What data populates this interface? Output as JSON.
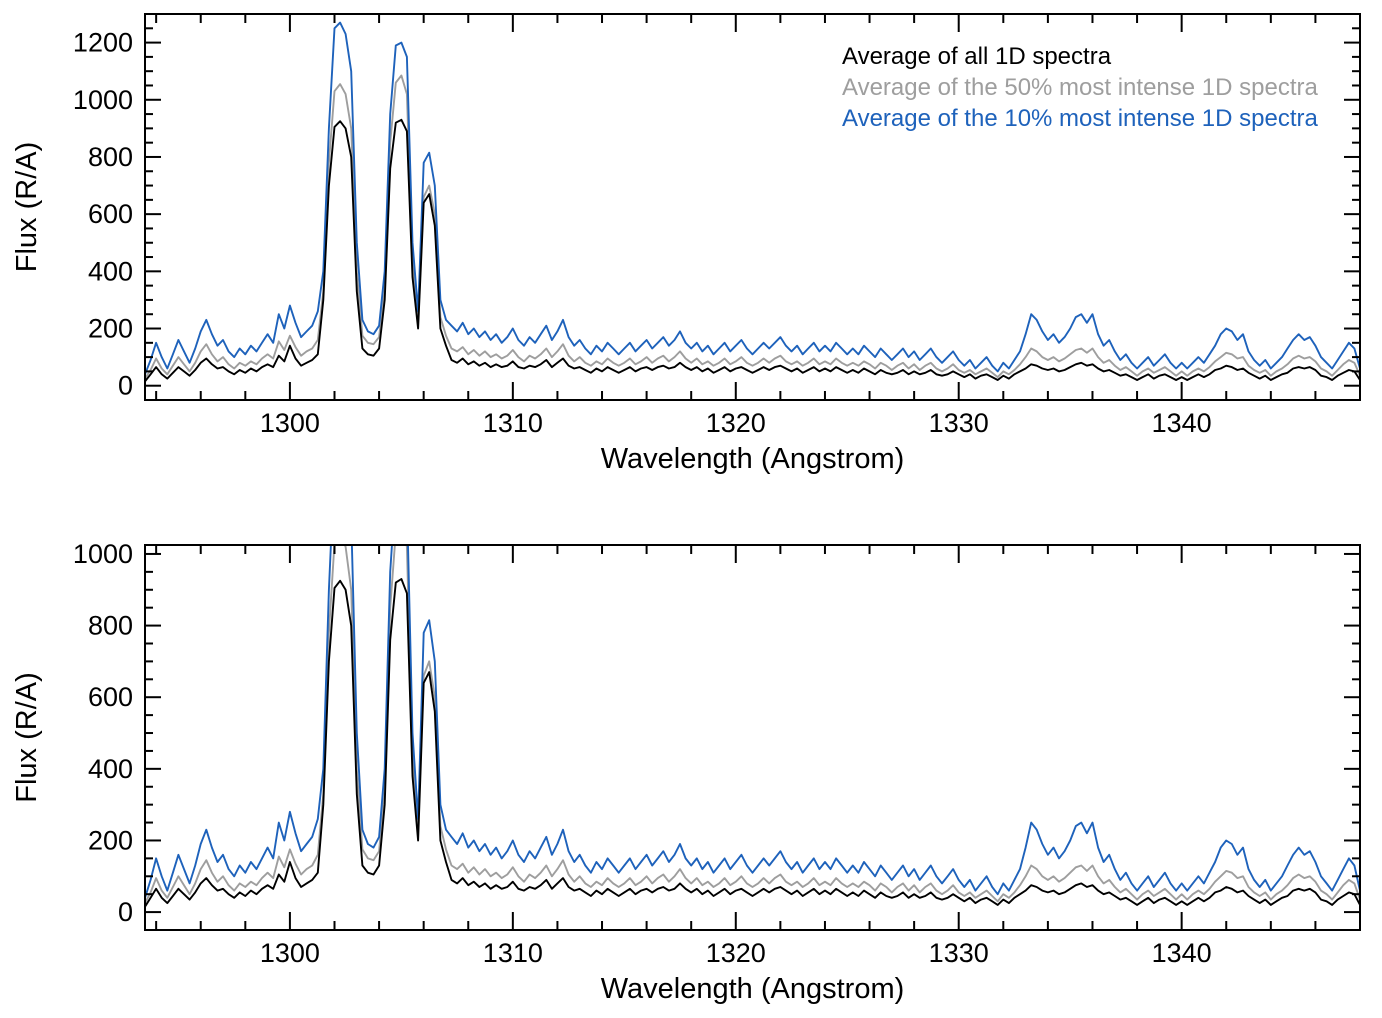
{
  "chart_data": {
    "type": "line",
    "xlabel": "Wavelength (Angstrom)",
    "ylabel": "Flux (R/A)",
    "xlim": [
      1293.5,
      1348
    ],
    "x_ticks": [
      1300,
      1310,
      1320,
      1330,
      1340
    ],
    "x_minor": 2,
    "x_start": 1293.5,
    "x_step": 0.25,
    "panels": [
      {
        "ylim": [
          -50,
          1300
        ],
        "y_ticks": [
          0,
          200,
          400,
          600,
          800,
          1000,
          1200
        ],
        "y_minor": 50,
        "legend": true
      },
      {
        "ylim": [
          -50,
          1025
        ],
        "y_ticks": [
          0,
          200,
          400,
          600,
          800,
          1000
        ],
        "y_minor": 50,
        "legend": false
      }
    ],
    "series": [
      {
        "name": "Average of all 1D spectra",
        "color": "#000000",
        "values": [
          15,
          40,
          65,
          40,
          25,
          45,
          65,
          50,
          35,
          55,
          80,
          95,
          75,
          60,
          65,
          50,
          40,
          55,
          45,
          60,
          50,
          65,
          75,
          65,
          105,
          85,
          140,
          95,
          70,
          80,
          90,
          110,
          300,
          700,
          905,
          925,
          900,
          800,
          330,
          130,
          110,
          105,
          130,
          300,
          760,
          920,
          930,
          890,
          380,
          200,
          640,
          670,
          560,
          200,
          140,
          90,
          80,
          95,
          75,
          85,
          70,
          80,
          65,
          75,
          65,
          70,
          85,
          65,
          60,
          70,
          65,
          75,
          90,
          65,
          80,
          95,
          70,
          60,
          65,
          55,
          45,
          60,
          50,
          65,
          55,
          45,
          55,
          65,
          50,
          60,
          65,
          55,
          65,
          70,
          60,
          65,
          80,
          65,
          55,
          65,
          50,
          60,
          45,
          55,
          65,
          50,
          60,
          65,
          55,
          45,
          55,
          65,
          55,
          65,
          70,
          60,
          50,
          60,
          45,
          55,
          65,
          50,
          60,
          50,
          65,
          55,
          45,
          55,
          45,
          60,
          50,
          40,
          55,
          45,
          40,
          45,
          55,
          40,
          50,
          40,
          45,
          55,
          40,
          35,
          40,
          50,
          40,
          30,
          40,
          25,
          35,
          40,
          30,
          20,
          35,
          25,
          40,
          50,
          60,
          75,
          70,
          60,
          55,
          60,
          50,
          55,
          65,
          75,
          80,
          70,
          75,
          60,
          50,
          55,
          45,
          35,
          40,
          30,
          20,
          30,
          40,
          25,
          35,
          40,
          30,
          20,
          30,
          20,
          30,
          40,
          30,
          40,
          55,
          60,
          70,
          65,
          55,
          60,
          45,
          35,
          25,
          35,
          20,
          30,
          40,
          45,
          60,
          65,
          60,
          65,
          55,
          35,
          30,
          20,
          35,
          45,
          55,
          50,
          20
        ]
      },
      {
        "name": "Average of the 50% most intense 1D spectra",
        "color": "#9e9e9e",
        "values": [
          25,
          55,
          95,
          60,
          40,
          70,
          100,
          75,
          50,
          80,
          120,
          145,
          110,
          85,
          100,
          75,
          60,
          80,
          70,
          85,
          75,
          95,
          110,
          95,
          155,
          125,
          175,
          135,
          105,
          120,
          130,
          160,
          330,
          780,
          1030,
          1055,
          1020,
          900,
          400,
          175,
          150,
          145,
          170,
          340,
          850,
          1060,
          1085,
          1020,
          430,
          230,
          660,
          700,
          600,
          240,
          175,
          130,
          120,
          135,
          110,
          125,
          105,
          120,
          100,
          110,
          95,
          105,
          125,
          100,
          85,
          105,
          95,
          110,
          130,
          100,
          120,
          145,
          105,
          85,
          100,
          80,
          70,
          85,
          75,
          95,
          80,
          70,
          80,
          95,
          75,
          85,
          100,
          80,
          95,
          105,
          85,
          100,
          120,
          95,
          80,
          95,
          75,
          85,
          70,
          80,
          95,
          75,
          85,
          100,
          80,
          70,
          80,
          95,
          80,
          95,
          105,
          85,
          75,
          85,
          70,
          80,
          95,
          75,
          85,
          75,
          95,
          80,
          70,
          80,
          70,
          85,
          75,
          60,
          80,
          70,
          55,
          70,
          80,
          60,
          75,
          55,
          70,
          80,
          60,
          50,
          60,
          75,
          55,
          45,
          55,
          40,
          50,
          60,
          45,
          30,
          50,
          40,
          55,
          75,
          100,
          130,
          120,
          100,
          90,
          100,
          85,
          95,
          110,
          125,
          130,
          115,
          130,
          100,
          80,
          90,
          70,
          55,
          65,
          50,
          35,
          50,
          60,
          45,
          55,
          65,
          50,
          35,
          50,
          35,
          50,
          60,
          50,
          65,
          85,
          100,
          115,
          110,
          95,
          100,
          70,
          55,
          45,
          55,
          35,
          50,
          60,
          75,
          95,
          105,
          95,
          100,
          85,
          60,
          50,
          35,
          55,
          75,
          90,
          80,
          35
        ]
      },
      {
        "name": "Average of the 10% most intense 1D spectra",
        "color": "#1e62bb",
        "values": [
          40,
          90,
          150,
          100,
          60,
          110,
          160,
          120,
          80,
          130,
          190,
          230,
          180,
          140,
          160,
          120,
          100,
          130,
          110,
          140,
          120,
          150,
          180,
          150,
          250,
          200,
          280,
          220,
          170,
          190,
          210,
          260,
          400,
          900,
          1250,
          1270,
          1230,
          1100,
          500,
          230,
          190,
          180,
          210,
          400,
          950,
          1190,
          1200,
          1150,
          500,
          260,
          780,
          815,
          700,
          300,
          230,
          210,
          190,
          220,
          180,
          200,
          170,
          190,
          160,
          180,
          150,
          170,
          200,
          160,
          140,
          170,
          150,
          180,
          210,
          160,
          190,
          230,
          170,
          140,
          160,
          130,
          110,
          140,
          120,
          150,
          130,
          110,
          130,
          150,
          120,
          140,
          160,
          130,
          150,
          170,
          140,
          160,
          190,
          150,
          130,
          150,
          120,
          140,
          110,
          130,
          150,
          120,
          140,
          160,
          130,
          110,
          130,
          150,
          130,
          150,
          170,
          140,
          120,
          140,
          110,
          130,
          150,
          120,
          140,
          120,
          150,
          130,
          110,
          130,
          110,
          140,
          120,
          100,
          130,
          110,
          90,
          110,
          130,
          100,
          120,
          90,
          110,
          130,
          100,
          80,
          100,
          120,
          90,
          70,
          90,
          60,
          80,
          100,
          70,
          50,
          80,
          60,
          90,
          120,
          180,
          250,
          230,
          190,
          160,
          180,
          150,
          170,
          200,
          240,
          250,
          220,
          250,
          180,
          140,
          160,
          120,
          90,
          110,
          80,
          60,
          80,
          100,
          70,
          90,
          110,
          80,
          60,
          80,
          60,
          80,
          100,
          80,
          110,
          140,
          180,
          200,
          190,
          160,
          180,
          120,
          90,
          70,
          90,
          60,
          80,
          100,
          130,
          160,
          180,
          160,
          170,
          140,
          100,
          80,
          60,
          90,
          120,
          150,
          130,
          60
        ]
      }
    ]
  }
}
